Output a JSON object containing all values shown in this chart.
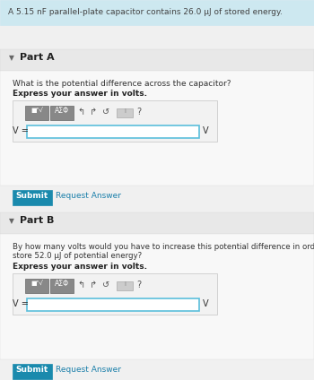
{
  "header_bg": "#cde8f0",
  "header_text": "A 5.15 nF parallel-plate capacitor contains 26.0 μJ of stored energy.",
  "header_text_color": "#444444",
  "header_font_size": 6.5,
  "part_header_bg": "#e8e8e8",
  "part_a_label": "Part A",
  "part_b_label": "Part B",
  "part_a_question": "What is the potential difference across the capacitor?",
  "part_b_question_line1": "By how many volts would you have to increase this potential difference in order for the capacitor to",
  "part_b_question_line2": "store 52.0 μJ of potential energy?",
  "express_label": "Express your answer in volts.",
  "input_border": "#5bbfdc",
  "input_bg": "#ffffff",
  "v_label": "V =",
  "v_unit": "V",
  "submit_bg": "#1a8aad",
  "submit_text": "Submit",
  "submit_text_color": "#ffffff",
  "request_text": "Request Answer",
  "request_text_color": "#1a7faa",
  "main_bg": "#f0f0f0",
  "body_bg": "#f8f8f8",
  "toolbar_box_bg": "#f2f2f2",
  "toolbar_box_border": "#cccccc",
  "btn1_bg": "#888888",
  "btn2_bg": "#888888"
}
